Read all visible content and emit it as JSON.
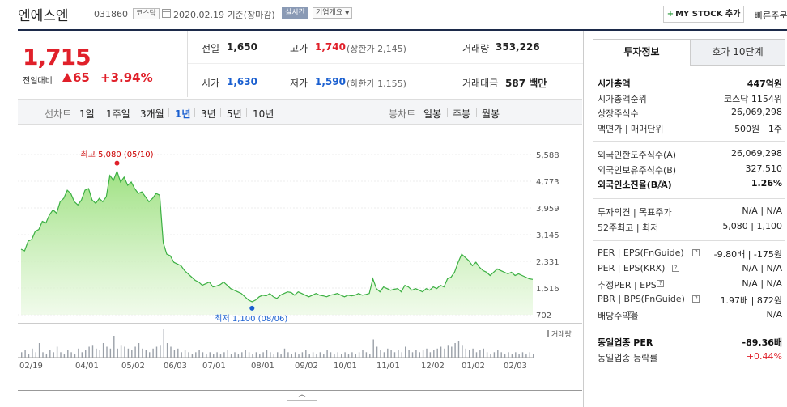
{
  "header": {
    "company_name": "엔에스엔",
    "code": "031860",
    "market_badge": "코스닥",
    "date_text": "2020.02.19 기준(장마감)",
    "realtime_badge": "실시간",
    "company_overview_button": "기업개요",
    "mystock_button": "MY STOCK 추가",
    "quick_link": "빠른주문"
  },
  "price": {
    "current": "1,715",
    "change_label": "전일대비",
    "change_value": "65",
    "change_pct": "+3.94%"
  },
  "quote": {
    "prev_label": "전일",
    "prev_value": "1,650",
    "high_label": "고가",
    "high_value": "1,740",
    "upper_limit": "(상한가 2,145)",
    "volume_label": "거래량",
    "volume_value": "353,226",
    "open_label": "시가",
    "open_value": "1,630",
    "low_label": "저가",
    "low_value": "1,590",
    "lower_limit": "(하한가 1,155)",
    "amount_label": "거래대금",
    "amount_value": "587 백만"
  },
  "period_bar": {
    "line_label": "선차트",
    "periods": [
      "1일",
      "1주일",
      "3개월",
      "1년",
      "3년",
      "5년",
      "10년"
    ],
    "selected": "1년",
    "candle_label": "봉차트",
    "candles": [
      "일봉",
      "주봉",
      "월봉"
    ]
  },
  "chart_data": {
    "type": "area",
    "y_ticks": [
      5588,
      4773,
      3959,
      3145,
      2331,
      1516,
      702
    ],
    "ylim": [
      702,
      5588
    ],
    "x_ticks": [
      "02/19",
      "04/01",
      "05/02",
      "06/03",
      "07/01",
      "08/01",
      "09/02",
      "10/01",
      "11/01",
      "12/02",
      "01/02",
      "02/03"
    ],
    "series": [
      {
        "values": [
          2700,
          2650,
          2950,
          3000,
          3250,
          3300,
          3550,
          3500,
          3750,
          3900,
          3800,
          4150,
          4250,
          4500,
          4400,
          4150,
          4050,
          4200,
          4500,
          4550,
          4200,
          4100,
          4250,
          4150,
          4300,
          4950,
          4800,
          5080,
          4750,
          4900,
          4650,
          4750,
          4550,
          4400,
          4450,
          4300,
          4150,
          4250,
          4400,
          4350,
          2900,
          2550,
          2500,
          2300,
          2250,
          2200,
          2050,
          1950,
          1850,
          1750,
          1700,
          1600,
          1650,
          1700,
          1550,
          1580,
          1620,
          1700,
          1600,
          1500,
          1450,
          1400,
          1350,
          1250,
          1150,
          1100,
          1150,
          1250,
          1300,
          1280,
          1350,
          1250,
          1200,
          1300,
          1350,
          1400,
          1380,
          1300,
          1400,
          1350,
          1300,
          1250,
          1300,
          1350,
          1300,
          1280,
          1250,
          1300,
          1320,
          1350,
          1300,
          1250,
          1300,
          1280,
          1300,
          1350,
          1300,
          1320,
          1350,
          1800,
          1500,
          1400,
          1550,
          1500,
          1450,
          1480,
          1500,
          1400,
          1600,
          1550,
          1450,
          1500,
          1450,
          1400,
          1500,
          1450,
          1550,
          1500,
          1600,
          1550,
          1800,
          1850,
          2000,
          2300,
          2550,
          2450,
          2350,
          2200,
          2300,
          2150,
          2050,
          2000,
          1900,
          2000,
          2100,
          2050,
          2000,
          1950,
          2000,
          1900,
          1950,
          1900,
          1850,
          1800,
          1780
        ],
        "volume": [
          3,
          4,
          2,
          5,
          3,
          8,
          3,
          2,
          4,
          3,
          6,
          3,
          2,
          4,
          3,
          2,
          5,
          3,
          4,
          6,
          7,
          5,
          4,
          8,
          6,
          5,
          12,
          5,
          7,
          6,
          5,
          4,
          6,
          8,
          5,
          4,
          3,
          5,
          6,
          7,
          16,
          8,
          6,
          4,
          5,
          3,
          4,
          3,
          2,
          3,
          4,
          3,
          2,
          3,
          2,
          3,
          2,
          3,
          4,
          2,
          3,
          2,
          3,
          4,
          3,
          2,
          3,
          2,
          3,
          4,
          3,
          2,
          3,
          2,
          5,
          3,
          2,
          3,
          2,
          3,
          4,
          2,
          3,
          2,
          3,
          2,
          4,
          3,
          2,
          3,
          2,
          3,
          2,
          3,
          2,
          3,
          4,
          3,
          2,
          10,
          6,
          4,
          3,
          5,
          4,
          3,
          4,
          3,
          6,
          4,
          3,
          4,
          3,
          4,
          5,
          3,
          4,
          5,
          6,
          5,
          7,
          6,
          8,
          9,
          7,
          5,
          4,
          5,
          3,
          4,
          5,
          3,
          2,
          3,
          4,
          3,
          2,
          3,
          2,
          3,
          2,
          3,
          2,
          3,
          2
        ]
      }
    ],
    "high": {
      "label": "최고 5,080 (05/10)",
      "value": 5080
    },
    "low": {
      "label": "최저 1,100 (08/06)",
      "value": 1100
    },
    "volume_legend": "거래량",
    "color": "#3cb043"
  },
  "panel": {
    "tab_invest": "투자정보",
    "tab_hoga": "호가 10단계",
    "rows1": [
      {
        "label": "시가총액",
        "value": "447억원",
        "bold": true
      },
      {
        "label": "시가총액순위",
        "value": "코스닥 1154위"
      },
      {
        "label": "상장주식수",
        "value": "26,069,298"
      },
      {
        "label": "액면가 | 매매단위",
        "value": "500원 | 1주"
      }
    ],
    "rows2": [
      {
        "label": "외국인한도주식수(A)",
        "value": "26,069,298"
      },
      {
        "label": "외국인보유주식수(B)",
        "value": "327,510"
      },
      {
        "label": "외국인소진율(B/A)",
        "value": "1.26%",
        "bold": true
      }
    ],
    "rows3": [
      {
        "label": "투자의견 | 목표주가",
        "value": "N/A | N/A"
      },
      {
        "label": "52주최고 | 최저",
        "value": "5,080 | 1,100"
      }
    ],
    "rows4": [
      {
        "label": "PER | EPS(FnGuide)",
        "value": "-9.80배 | -175원"
      },
      {
        "label": "PER | EPS(KRX)",
        "value": "N/A | N/A"
      },
      {
        "label": "추정PER | EPS",
        "value": "N/A | N/A"
      },
      {
        "label": "PBR | BPS(FnGuide)",
        "value": "1.97배 | 872원"
      },
      {
        "label": "배당수익률",
        "value": "N/A"
      }
    ],
    "rows5": [
      {
        "label": "동일업종 PER",
        "value": "-89.36배",
        "bold": true
      },
      {
        "label": "동일업종 등락률",
        "value": "+0.44%",
        "red": true
      }
    ]
  }
}
